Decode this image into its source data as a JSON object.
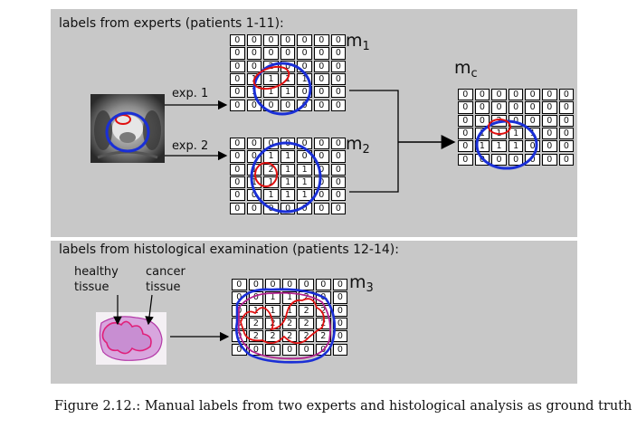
{
  "panels": {
    "experts_title": "labels from experts (patients 1-11):",
    "histo_title": "labels from histological examination (patients 12-14):"
  },
  "arrows": {
    "exp1": "exp. 1",
    "exp2": "exp. 2"
  },
  "histology": {
    "healthy": "healthy\ntissue",
    "cancer": "cancer\ntissue"
  },
  "matrices": {
    "m1": {
      "name": "m",
      "sub": "1",
      "rows": [
        [
          "0",
          "0",
          "0",
          "0",
          "0",
          "0",
          "0"
        ],
        [
          "0",
          "0",
          "0",
          "0",
          "0",
          "0",
          "0"
        ],
        [
          "0",
          "0",
          "2",
          "0",
          "0",
          "0",
          "0"
        ],
        [
          "0",
          "1",
          "1",
          "1",
          "1",
          "0",
          "0"
        ],
        [
          "0",
          "1",
          "1",
          "1",
          "0",
          "0",
          "0"
        ],
        [
          "0",
          "0",
          "0",
          "0",
          "0",
          "0",
          "0"
        ]
      ]
    },
    "m2": {
      "name": "m",
      "sub": "2",
      "rows": [
        [
          "0",
          "0",
          "0",
          "0",
          "0",
          "0",
          "0"
        ],
        [
          "0",
          "0",
          "1",
          "1",
          "0",
          "0",
          "0"
        ],
        [
          "0",
          "1",
          "2",
          "1",
          "1",
          "0",
          "0"
        ],
        [
          "0",
          "1",
          "1",
          "1",
          "1",
          "0",
          "0"
        ],
        [
          "0",
          "0",
          "1",
          "1",
          "1",
          "0",
          "0"
        ],
        [
          "0",
          "0",
          "0",
          "0",
          "0",
          "0",
          "0"
        ]
      ]
    },
    "mc": {
      "name": "m",
      "sub": "c",
      "rows": [
        [
          "0",
          "0",
          "0",
          "0",
          "0",
          "0",
          "0"
        ],
        [
          "0",
          "0",
          "0",
          "0",
          "0",
          "0",
          "0"
        ],
        [
          "0",
          "0",
          "2",
          "0",
          "0",
          "0",
          "0"
        ],
        [
          "0",
          "1",
          "1",
          "1",
          "1",
          "0",
          "0"
        ],
        [
          "0",
          "1",
          "1",
          "1",
          "0",
          "0",
          "0"
        ],
        [
          "0",
          "0",
          "0",
          "0",
          "0",
          "0",
          "0"
        ]
      ]
    },
    "m3": {
      "name": "m",
      "sub": "3",
      "rows": [
        [
          "0",
          "0",
          "0",
          "0",
          "0",
          "0",
          "0"
        ],
        [
          "0",
          "0",
          "1",
          "1",
          "2",
          "0",
          "0"
        ],
        [
          "0",
          "1",
          "1",
          "1",
          "2",
          "2",
          "0"
        ],
        [
          "0",
          "2",
          "2",
          "2",
          "2",
          "2",
          "0"
        ],
        [
          "0",
          "2",
          "2",
          "2",
          "2",
          "2",
          "0"
        ],
        [
          "0",
          "0",
          "0",
          "0",
          "0",
          "0",
          "0"
        ]
      ]
    }
  },
  "caption": "Figure 2.12.: Manual labels from two experts and histological analysis as ground truth",
  "colors": {
    "panel": "#c8c8c8",
    "expert_contour": "#1a2fd6",
    "tumor_contour": "#e01010",
    "histology_tissue": "#cf9ad6"
  }
}
